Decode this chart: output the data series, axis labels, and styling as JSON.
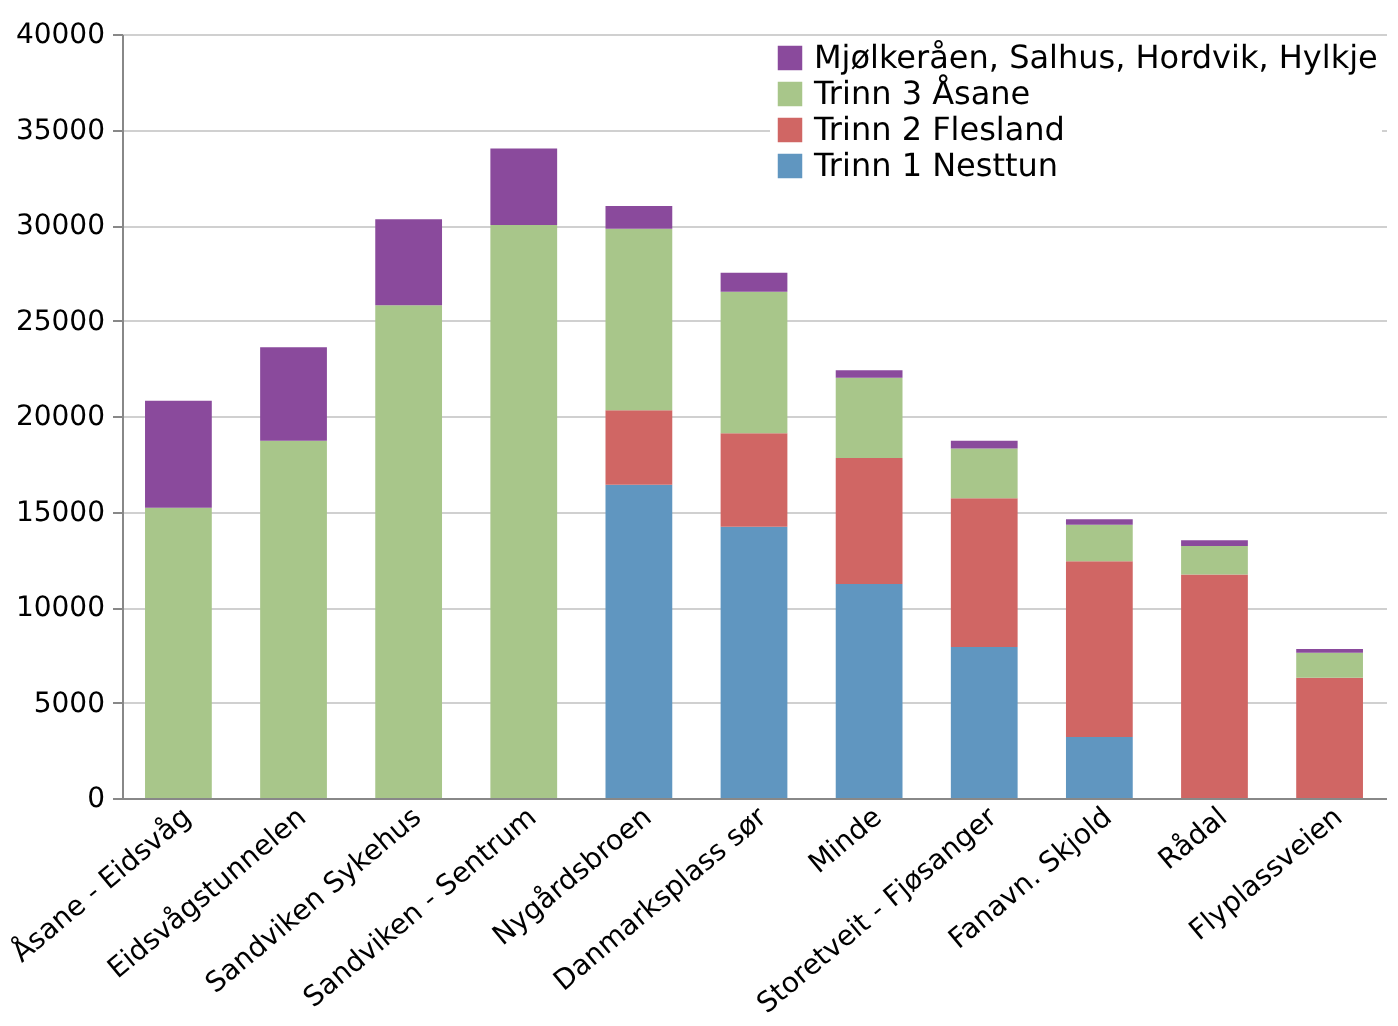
{
  "chart_data": {
    "type": "bar",
    "stacked": true,
    "categories": [
      "Åsane - Eidsvåg",
      "Eidsvågstunnelen",
      "Sandviken Sykehus",
      "Sandviken - Sentrum",
      "Nygårdsbroen",
      "Danmarksplass sør",
      "Minde",
      "Storetveit - Fjøsanger",
      "Fanavn. Skjold",
      "Rådal",
      "Flyplassveien"
    ],
    "series": [
      {
        "name": "Trinn 1 Nesttun",
        "color": "#6096c0",
        "values": [
          0,
          0,
          0,
          0,
          16400,
          14200,
          11200,
          7900,
          3200,
          0,
          0
        ]
      },
      {
        "name": "Trinn 2 Flesland",
        "color": "#d06664",
        "values": [
          0,
          0,
          0,
          0,
          3900,
          4900,
          6600,
          7800,
          9200,
          11700,
          6300
        ]
      },
      {
        "name": "Trinn 3 Åsane",
        "color": "#a8c68a",
        "values": [
          15200,
          18700,
          25800,
          30000,
          9500,
          7400,
          4200,
          2600,
          1900,
          1500,
          1300
        ]
      },
      {
        "name": "Mjølkeråen, Salhus, Hordvik, Hylkje",
        "color": "#8a4a9c",
        "values": [
          5600,
          4900,
          4500,
          4000,
          1200,
          1000,
          400,
          400,
          300,
          300,
          200
        ]
      }
    ],
    "ylim": [
      0,
      40000
    ],
    "yticks": [
      0,
      5000,
      10000,
      15000,
      20000,
      25000,
      30000,
      35000,
      40000
    ],
    "grid": "y",
    "legend": "top right"
  }
}
